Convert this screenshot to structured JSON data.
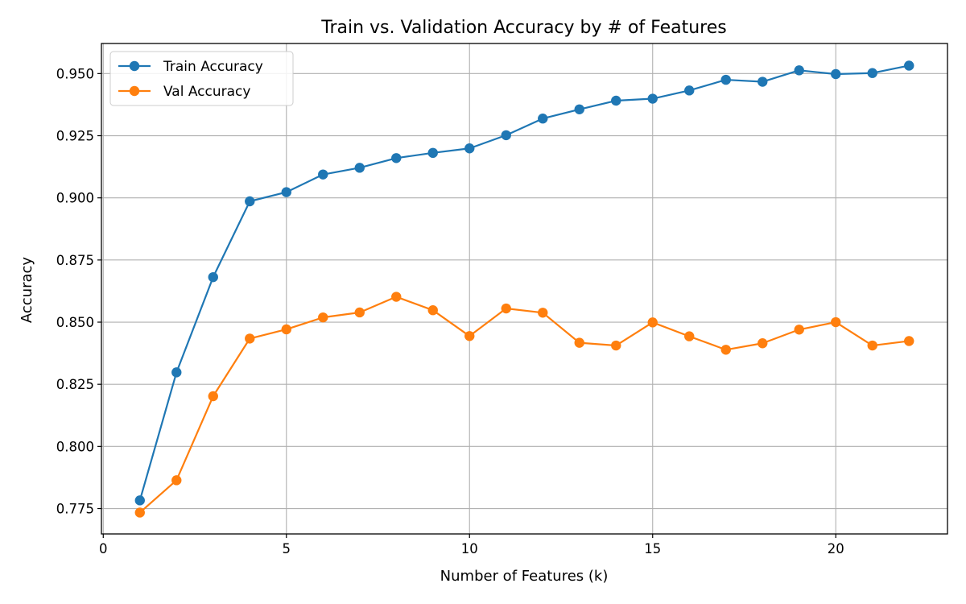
{
  "chart_data": {
    "type": "line",
    "title": "Train vs. Validation Accuracy by # of Features",
    "xlabel": "Number of Features (k)",
    "ylabel": "Accuracy",
    "xlim": [
      -0.05,
      23.05
    ],
    "ylim": [
      0.7648,
      0.9621
    ],
    "xticks": [
      0,
      5,
      10,
      15,
      20
    ],
    "xtick_labels": [
      "0",
      "5",
      "10",
      "15",
      "20"
    ],
    "yticks": [
      0.775,
      0.8,
      0.825,
      0.85,
      0.875,
      0.9,
      0.925,
      0.95
    ],
    "ytick_labels": [
      "0.775",
      "0.800",
      "0.825",
      "0.850",
      "0.875",
      "0.900",
      "0.925",
      "0.950"
    ],
    "grid": true,
    "legend_position": "top-left",
    "x": [
      1,
      2,
      3,
      4,
      5,
      6,
      7,
      8,
      9,
      10,
      11,
      12,
      13,
      14,
      15,
      16,
      17,
      18,
      19,
      20,
      21,
      22
    ],
    "series": [
      {
        "name": "Train Accuracy",
        "color": "#1f77b4",
        "values": [
          0.7783,
          0.8298,
          0.8681,
          0.8986,
          0.9023,
          0.9094,
          0.9121,
          0.916,
          0.9181,
          0.9199,
          0.9252,
          0.9319,
          0.9356,
          0.9391,
          0.9399,
          0.9432,
          0.9475,
          0.9467,
          0.9513,
          0.9498,
          0.9502,
          0.9532
        ]
      },
      {
        "name": "Val Accuracy",
        "color": "#ff7f0e",
        "values": [
          0.7734,
          0.7864,
          0.8202,
          0.8434,
          0.8471,
          0.8519,
          0.8539,
          0.8602,
          0.8548,
          0.8444,
          0.8555,
          0.8538,
          0.8417,
          0.8406,
          0.8499,
          0.8443,
          0.8389,
          0.8415,
          0.847,
          0.85,
          0.8406,
          0.8424
        ]
      }
    ]
  }
}
